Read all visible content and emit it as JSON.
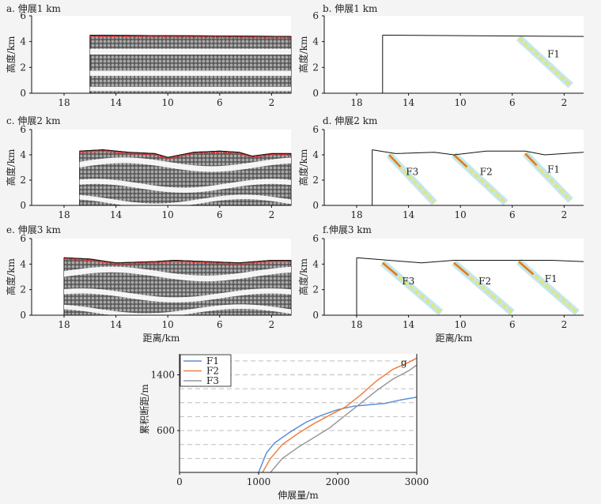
{
  "chart_data": [
    {
      "panel": "a",
      "title": "a. 伸展1 km",
      "type": "particle-section",
      "ylabel": "高度/km",
      "xticks": [
        "18",
        "14",
        "10",
        "6",
        "2"
      ],
      "yticks": [
        "0",
        "2",
        "4",
        "6"
      ],
      "xlim": [
        20.5,
        0.5
      ],
      "ylim": [
        0,
        6
      ],
      "surface": [
        [
          16,
          4.5
        ],
        [
          0.5,
          4.4
        ]
      ],
      "faults": [],
      "colors": {
        "particle": "#7a7a7a",
        "top_layer": "#e03030"
      }
    },
    {
      "panel": "b",
      "title": "b. 伸展1 km",
      "type": "strain-section",
      "ylabel": "高度/km",
      "xticks": [
        "18",
        "14",
        "10",
        "6",
        "2"
      ],
      "yticks": [
        "0",
        "2",
        "4",
        "6"
      ],
      "xlim": [
        20.5,
        0.5
      ],
      "ylim": [
        0,
        6
      ],
      "surface": [
        [
          16,
          4.5
        ],
        [
          0.5,
          4.4
        ]
      ],
      "faults": [
        {
          "label": "F1",
          "x": 3.3,
          "y": 2.8,
          "trace": [
            [
              5.5,
              4.3
            ],
            [
              1.5,
              0.6
            ]
          ]
        }
      ],
      "colors": {
        "strain_low": "#8fd3e8",
        "strain_mid": "#e8e36a"
      }
    },
    {
      "panel": "c",
      "title": "c. 伸展2 km",
      "type": "particle-section",
      "ylabel": "高度/km",
      "xticks": [
        "18",
        "14",
        "10",
        "6",
        "2"
      ],
      "yticks": [
        "0",
        "2",
        "4",
        "6"
      ],
      "xlim": [
        20.5,
        0.5
      ],
      "ylim": [
        0,
        6
      ],
      "surface": [
        [
          16.8,
          4.3
        ],
        [
          15,
          4.4
        ],
        [
          13,
          4.2
        ],
        [
          11,
          4.1
        ],
        [
          10,
          3.8
        ],
        [
          8,
          4.2
        ],
        [
          6,
          4.3
        ],
        [
          4.5,
          4.2
        ],
        [
          3.5,
          3.9
        ],
        [
          2,
          4.1
        ],
        [
          0.5,
          4.1
        ]
      ],
      "faults": [],
      "colors": {
        "particle": "#7a7a7a",
        "top_layer": "#e03030"
      }
    },
    {
      "panel": "d",
      "title": "d. 伸展2 km",
      "type": "strain-section",
      "ylabel": "高度/km",
      "xticks": [
        "18",
        "14",
        "10",
        "6",
        "2"
      ],
      "yticks": [
        "0",
        "2",
        "4",
        "6"
      ],
      "xlim": [
        20.5,
        0.5
      ],
      "ylim": [
        0,
        6
      ],
      "surface": [
        [
          16.8,
          4.4
        ],
        [
          15,
          4.1
        ],
        [
          12,
          4.2
        ],
        [
          10.5,
          4.0
        ],
        [
          8,
          4.3
        ],
        [
          5,
          4.3
        ],
        [
          3.5,
          4.0
        ],
        [
          0.5,
          4.2
        ]
      ],
      "faults": [
        {
          "label": "F3",
          "x": 14.2,
          "y": 2.4,
          "trace": [
            [
              15.5,
              4.0
            ],
            [
              12,
              0.2
            ]
          ]
        },
        {
          "label": "F2",
          "x": 8.5,
          "y": 2.4,
          "trace": [
            [
              10.5,
              4.0
            ],
            [
              6.5,
              0.2
            ]
          ]
        },
        {
          "label": "F1",
          "x": 3.3,
          "y": 2.6,
          "trace": [
            [
              5.0,
              4.1
            ],
            [
              1.5,
              0.4
            ]
          ]
        }
      ],
      "colors": {
        "strain_low": "#8fd3e8",
        "strain_mid": "#e8e36a",
        "strain_high": "#e0782a"
      }
    },
    {
      "panel": "e",
      "title": "e. 伸展3 km",
      "type": "particle-section",
      "ylabel": "高度/km",
      "xlabel": "距离/km",
      "xticks": [
        "18",
        "14",
        "10",
        "6",
        "2"
      ],
      "yticks": [
        "0",
        "2",
        "4",
        "6"
      ],
      "xlim": [
        20.5,
        0.5
      ],
      "ylim": [
        0,
        6
      ],
      "surface": [
        [
          18,
          4.5
        ],
        [
          16,
          4.4
        ],
        [
          14,
          4.1
        ],
        [
          11,
          4.2
        ],
        [
          9.5,
          4.3
        ],
        [
          7,
          4.2
        ],
        [
          4.5,
          4.1
        ],
        [
          2,
          4.3
        ],
        [
          0.5,
          4.3
        ]
      ],
      "faults": [],
      "colors": {
        "particle": "#7a7a7a",
        "top_layer": "#e03030"
      }
    },
    {
      "panel": "f",
      "title": "f.伸展3 km",
      "type": "strain-section",
      "ylabel": "高度/km",
      "xlabel": "距离/km",
      "xticks": [
        "18",
        "14",
        "10",
        "6",
        "2"
      ],
      "yticks": [
        "0",
        "2",
        "4",
        "6"
      ],
      "xlim": [
        20.5,
        0.5
      ],
      "ylim": [
        0,
        6
      ],
      "surface": [
        [
          18,
          4.5
        ],
        [
          15.5,
          4.3
        ],
        [
          13,
          4.1
        ],
        [
          10.5,
          4.3
        ],
        [
          8,
          4.3
        ],
        [
          5.5,
          4.3
        ],
        [
          3,
          4.3
        ],
        [
          0.5,
          4.2
        ]
      ],
      "faults": [
        {
          "label": "F3",
          "x": 14.5,
          "y": 2.4,
          "trace": [
            [
              16,
              4.1
            ],
            [
              11.5,
              0.2
            ]
          ]
        },
        {
          "label": "F2",
          "x": 8.6,
          "y": 2.4,
          "trace": [
            [
              10.5,
              4.1
            ],
            [
              6.0,
              0.2
            ]
          ]
        },
        {
          "label": "F1",
          "x": 3.5,
          "y": 2.6,
          "trace": [
            [
              5.5,
              4.2
            ],
            [
              1.0,
              0.2
            ]
          ]
        }
      ],
      "colors": {
        "strain_low": "#8fd3e8",
        "strain_mid": "#e8e36a",
        "strain_high": "#e0782a"
      }
    },
    {
      "panel": "g",
      "title": "g",
      "type": "line",
      "xlabel": "伸展量/m",
      "ylabel": "累积断距/m",
      "xlim": [
        0,
        3000
      ],
      "ylim": [
        0,
        1700
      ],
      "xticks": [
        0,
        1000,
        2000,
        3000
      ],
      "yticks": [
        600,
        1400
      ],
      "grid": "horizontal dashed",
      "legend": "top-left",
      "series": [
        {
          "name": "F1",
          "color": "#5b8fd6",
          "x": [
            1000,
            1100,
            1200,
            1400,
            1600,
            1800,
            2000,
            2200,
            2400,
            2600,
            2800,
            3000
          ],
          "y": [
            0,
            280,
            420,
            580,
            720,
            820,
            900,
            950,
            970,
            990,
            1040,
            1080
          ]
        },
        {
          "name": "F2",
          "color": "#f08040",
          "x": [
            1050,
            1150,
            1300,
            1500,
            1700,
            1900,
            2100,
            2300,
            2500,
            2700,
            2900,
            3000
          ],
          "y": [
            0,
            200,
            400,
            560,
            700,
            820,
            940,
            1120,
            1320,
            1480,
            1580,
            1640
          ]
        },
        {
          "name": "F3",
          "color": "#999999",
          "x": [
            1150,
            1300,
            1500,
            1700,
            1900,
            2100,
            2300,
            2500,
            2700,
            2900,
            3000
          ],
          "y": [
            0,
            200,
            360,
            500,
            640,
            820,
            1000,
            1180,
            1340,
            1460,
            1540
          ]
        }
      ]
    }
  ]
}
